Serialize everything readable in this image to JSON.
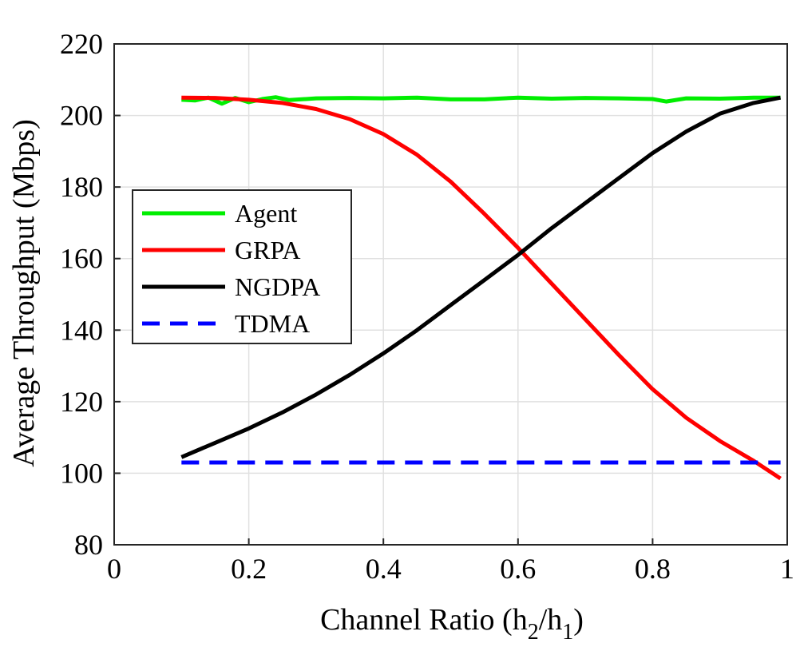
{
  "chart_data": {
    "type": "line",
    "xlabel": "Channel Ratio (h",
    "xlabel_sub1": "2",
    "xlabel_mid": "/h",
    "xlabel_sub2": "1",
    "xlabel_end": ")",
    "ylabel": "Average Throughput (Mbps)",
    "xlim": [
      0,
      1
    ],
    "ylim": [
      80,
      220
    ],
    "xticks": [
      0,
      0.2,
      0.4,
      0.6,
      0.8,
      1
    ],
    "xtick_labels": [
      "0",
      "0.2",
      "0.4",
      "0.6",
      "0.8",
      "1"
    ],
    "yticks": [
      80,
      100,
      120,
      140,
      160,
      180,
      200,
      220
    ],
    "ytick_labels": [
      "80",
      "100",
      "120",
      "140",
      "160",
      "180",
      "200",
      "220"
    ],
    "grid": true,
    "legend_position": "center-left",
    "series": [
      {
        "name": "Agent",
        "color": "#00ee00",
        "dash": "solid",
        "x": [
          0.1,
          0.12,
          0.14,
          0.16,
          0.18,
          0.2,
          0.22,
          0.24,
          0.26,
          0.3,
          0.35,
          0.4,
          0.45,
          0.5,
          0.55,
          0.6,
          0.65,
          0.7,
          0.75,
          0.8,
          0.82,
          0.85,
          0.9,
          0.95,
          0.99
        ],
        "y": [
          204.4,
          204.2,
          205.0,
          203.3,
          204.9,
          203.7,
          204.6,
          205.1,
          204.3,
          204.8,
          204.9,
          204.8,
          205.0,
          204.5,
          204.5,
          205.0,
          204.7,
          204.9,
          204.8,
          204.6,
          203.9,
          204.8,
          204.7,
          205.0,
          205.0
        ]
      },
      {
        "name": "GRPA",
        "color": "#ff0000",
        "dash": "solid",
        "x": [
          0.1,
          0.15,
          0.2,
          0.25,
          0.3,
          0.35,
          0.4,
          0.45,
          0.5,
          0.55,
          0.6,
          0.65,
          0.7,
          0.75,
          0.8,
          0.85,
          0.9,
          0.95,
          0.99
        ],
        "y": [
          205.0,
          204.9,
          204.4,
          203.5,
          201.8,
          199.0,
          194.8,
          189.0,
          181.5,
          172.5,
          163.0,
          153.0,
          143.0,
          133.0,
          123.5,
          115.5,
          109.0,
          103.5,
          98.5
        ]
      },
      {
        "name": "NGDPA",
        "color": "#000000",
        "dash": "solid",
        "x": [
          0.1,
          0.15,
          0.2,
          0.25,
          0.3,
          0.35,
          0.4,
          0.45,
          0.5,
          0.55,
          0.6,
          0.65,
          0.7,
          0.75,
          0.8,
          0.85,
          0.9,
          0.95,
          0.99
        ],
        "y": [
          104.5,
          108.5,
          112.5,
          117.0,
          122.0,
          127.5,
          133.5,
          140.0,
          147.0,
          154.0,
          161.0,
          168.5,
          175.5,
          182.5,
          189.5,
          195.5,
          200.5,
          203.5,
          205.0
        ]
      },
      {
        "name": "TDMA",
        "color": "#0000ff",
        "dash": "dashed",
        "x": [
          0.1,
          0.99
        ],
        "y": [
          103.0,
          103.0
        ]
      }
    ]
  }
}
